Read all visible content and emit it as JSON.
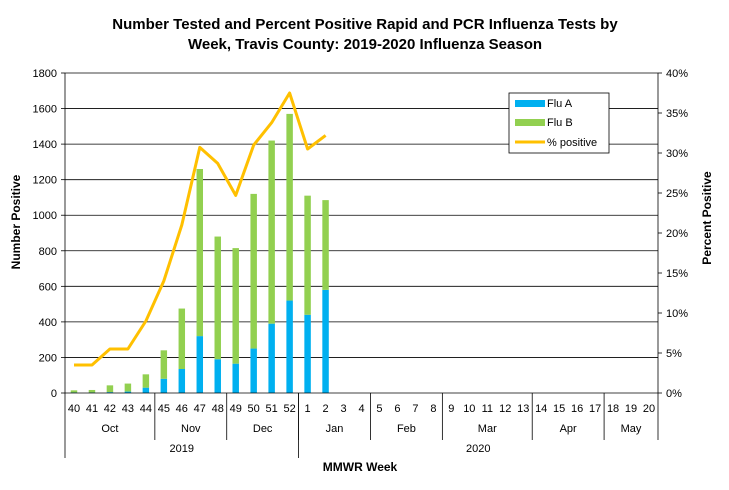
{
  "chart_data": {
    "type": "bar",
    "title": [
      "Number Tested and Percent Positive Rapid and PCR Influenza Tests by",
      "Week, Travis County:  2019-2020 Influenza Season"
    ],
    "xlabel": "MMWR Week",
    "ylabel": "Number Positive",
    "y2label": "Percent Positive",
    "ylim": [
      0,
      1800
    ],
    "y2lim": [
      0,
      40
    ],
    "yticks": [
      "0",
      "200",
      "400",
      "600",
      "800",
      "1000",
      "1200",
      "1400",
      "1600",
      "1800"
    ],
    "y2ticks": [
      "0%",
      "5%",
      "10%",
      "15%",
      "20%",
      "25%",
      "30%",
      "35%",
      "40%"
    ],
    "categories": [
      "40",
      "41",
      "42",
      "43",
      "44",
      "45",
      "46",
      "47",
      "48",
      "49",
      "50",
      "51",
      "52",
      "1",
      "2",
      "3",
      "4",
      "5",
      "6",
      "7",
      "8",
      "9",
      "10",
      "11",
      "12",
      "13",
      "14",
      "15",
      "16",
      "17",
      "18",
      "19",
      "20"
    ],
    "months": [
      {
        "label": "Oct",
        "start": 0,
        "end": 5
      },
      {
        "label": "Nov",
        "start": 5,
        "end": 9
      },
      {
        "label": "Dec",
        "start": 9,
        "end": 13
      },
      {
        "label": "Jan",
        "start": 13,
        "end": 17
      },
      {
        "label": "Feb",
        "start": 17,
        "end": 21
      },
      {
        "label": "Mar",
        "start": 21,
        "end": 26
      },
      {
        "label": "Apr",
        "start": 26,
        "end": 30
      },
      {
        "label": "May",
        "start": 30,
        "end": 33
      }
    ],
    "years": [
      {
        "label": "2019",
        "start": 0,
        "end": 13
      },
      {
        "label": "2020",
        "start": 13,
        "end": 33
      }
    ],
    "series": [
      {
        "name": "Flu A",
        "type": "bar",
        "stack": true,
        "color": "#00b0f0",
        "values": [
          3,
          3,
          5,
          8,
          30,
          80,
          135,
          320,
          190,
          165,
          250,
          390,
          520,
          440,
          580,
          null,
          null,
          null,
          null,
          null,
          null,
          null,
          null,
          null,
          null,
          null,
          null,
          null,
          null,
          null,
          null,
          null,
          null
        ]
      },
      {
        "name": "Flu B",
        "type": "bar",
        "stack": true,
        "color": "#92d050",
        "values": [
          12,
          14,
          38,
          45,
          75,
          160,
          340,
          940,
          690,
          650,
          870,
          1030,
          1050,
          670,
          505,
          null,
          null,
          null,
          null,
          null,
          null,
          null,
          null,
          null,
          null,
          null,
          null,
          null,
          null,
          null,
          null,
          null,
          null
        ]
      },
      {
        "name": "% positive",
        "type": "line",
        "axis": "right",
        "color": "#ffc000",
        "values": [
          3.5,
          3.5,
          5.5,
          5.5,
          9.0,
          14.0,
          21.0,
          30.7,
          28.7,
          24.7,
          31.0,
          33.8,
          37.5,
          30.5,
          32.2,
          null,
          null,
          null,
          null,
          null,
          null,
          null,
          null,
          null,
          null,
          null,
          null,
          null,
          null,
          null,
          null,
          null,
          null
        ]
      }
    ],
    "legend": "top-right"
  }
}
